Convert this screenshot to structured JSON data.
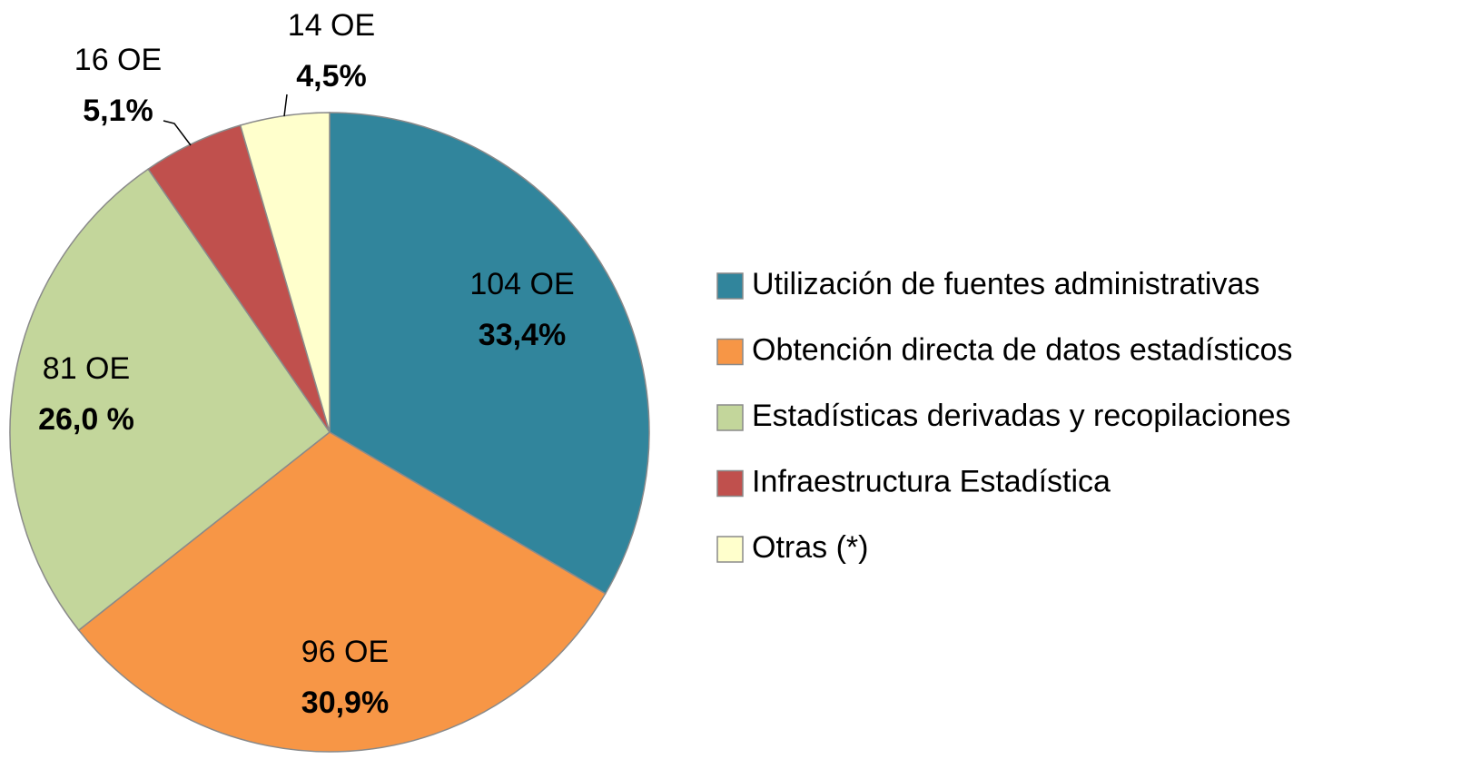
{
  "chart_data": {
    "type": "pie",
    "categories": [
      "Utilización de fuentes administrativas",
      "Obtención directa de datos estadísticos",
      "Estadísticas derivadas y recopilaciones",
      "Infraestructura Estadística",
      "Otras (*)"
    ],
    "values": [
      33.4,
      30.9,
      26.0,
      5.1,
      4.5
    ],
    "value_labels": [
      "33,4%",
      "30,9%",
      "26,0 %",
      "5,1%",
      "4,5%"
    ],
    "counts": [
      104,
      96,
      81,
      16,
      14
    ],
    "count_labels": [
      "104 OE",
      "96 OE",
      "81 OE",
      "16 OE",
      "14 OE"
    ],
    "colors": [
      "#31859c",
      "#f79646",
      "#c3d69b",
      "#c0504d",
      "#ffffcc"
    ],
    "legend": "right"
  }
}
